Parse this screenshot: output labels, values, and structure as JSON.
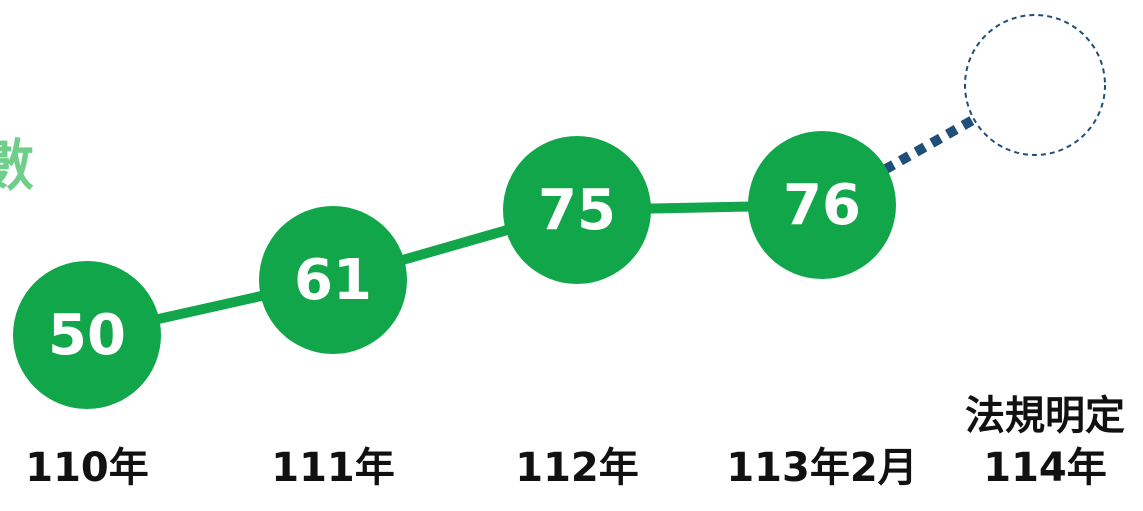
{
  "chart_data": {
    "type": "line",
    "title": "數",
    "categories": [
      "110年",
      "111年",
      "112年",
      "113年2月",
      "法規明定\n114年"
    ],
    "values": [
      50,
      61,
      75,
      76,
      100
    ],
    "color": "#12a64a",
    "target_color": "#1f4e79"
  }
}
